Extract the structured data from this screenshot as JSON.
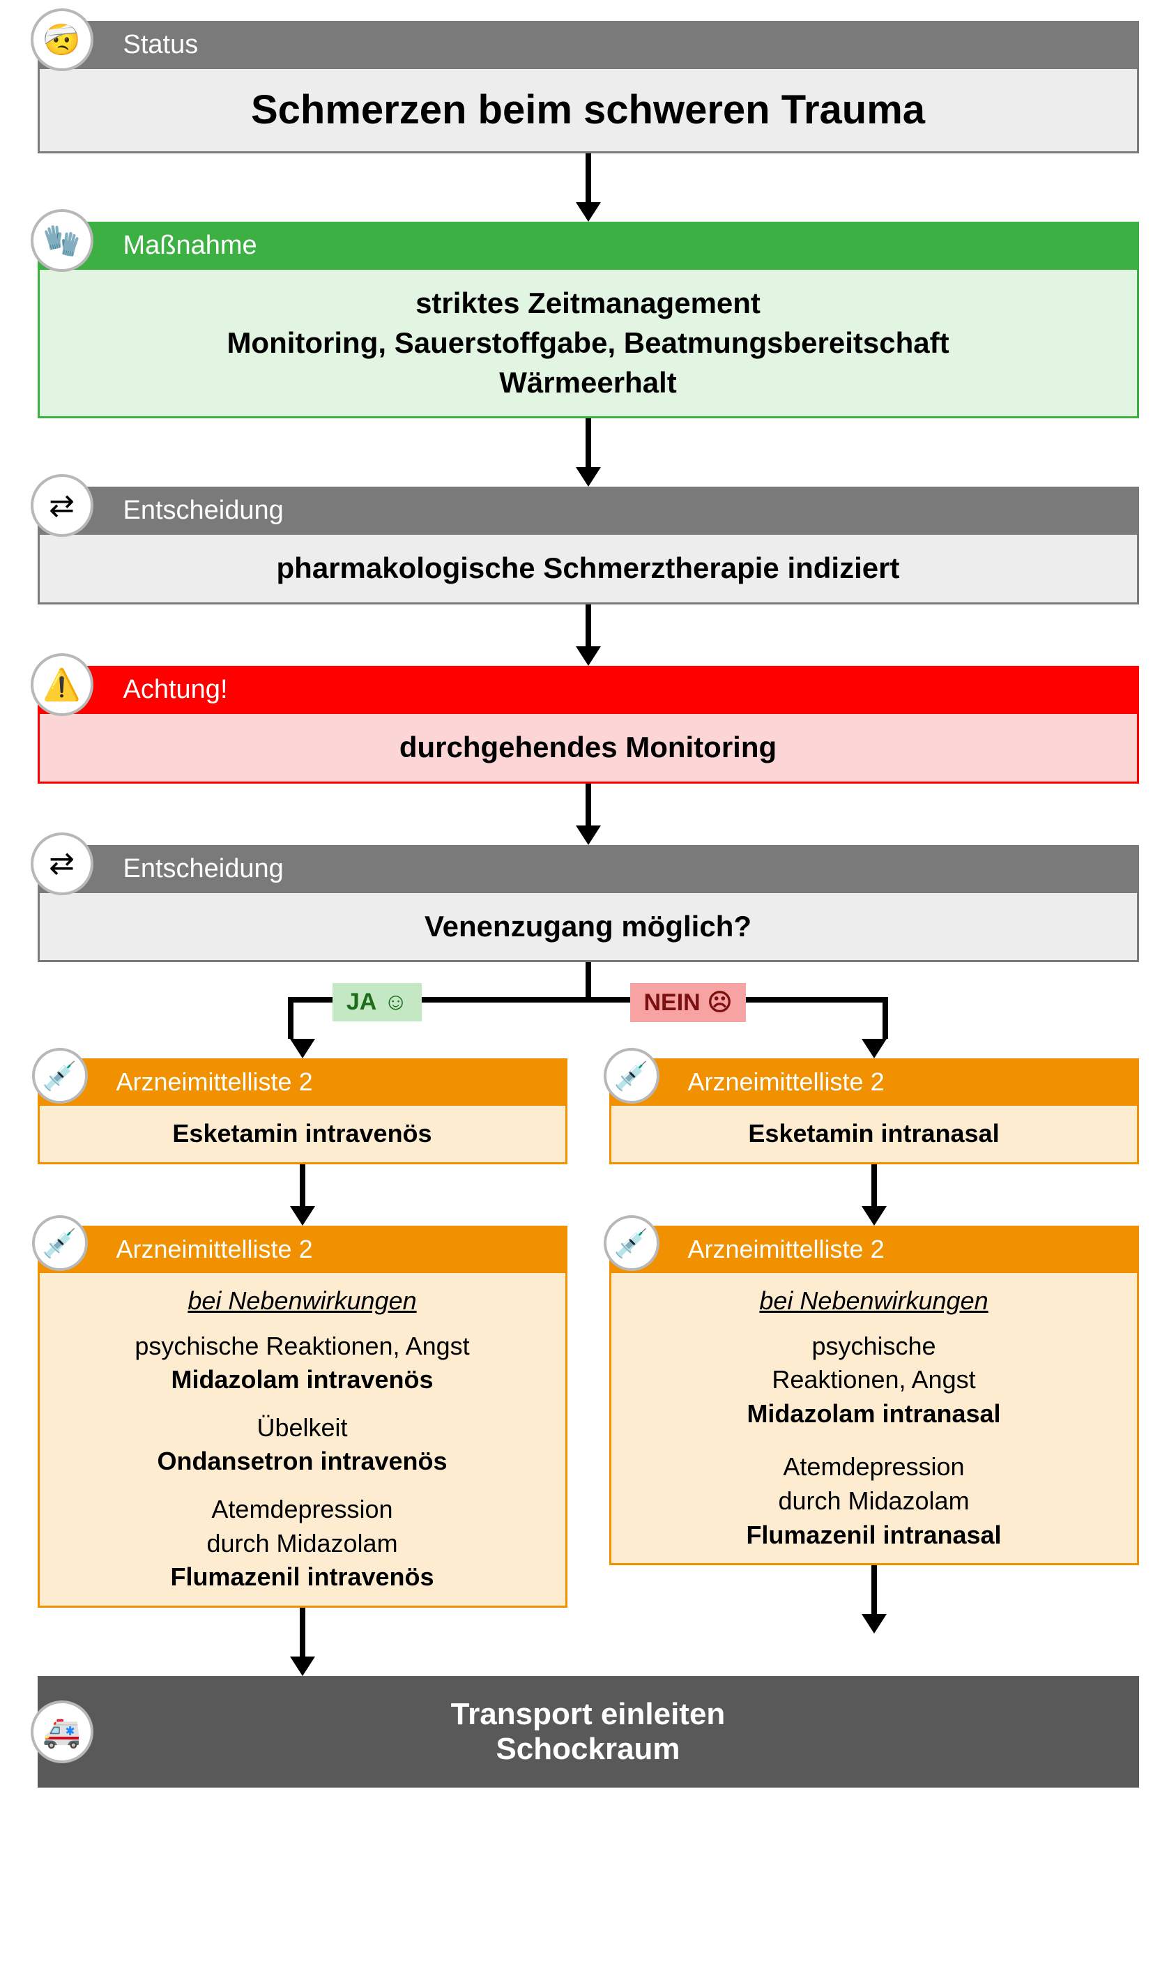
{
  "colors": {
    "gray_header": "#7a7a7a",
    "gray_body": "#ededed",
    "gray_border": "#7a7a7a",
    "green_header": "#3cb043",
    "green_body": "#e2f4e2",
    "green_border": "#3cb043",
    "red_header": "#ff0000",
    "red_body": "#fcd6d6",
    "red_border": "#ff0000",
    "orange_header": "#f29100",
    "orange_body": "#fdecd0",
    "orange_border": "#f29100",
    "dark_end": "#595959",
    "end_text": "#ffffff",
    "ja_bg": "#c3e8c3",
    "ja_text": "#1c6b1c",
    "nein_bg": "#f7a3a3",
    "nein_text": "#7a1010",
    "icon_border": "#b8b8b8"
  },
  "arrow_lengths": {
    "short": 70,
    "med": 60
  },
  "status": {
    "icon": "🤕",
    "header": "Status",
    "title": "Schmerzen beim schweren Trauma"
  },
  "massnahme": {
    "icon": "🧤",
    "header": "Maßnahme",
    "line1": "striktes Zeitmanagement",
    "line2": "Monitoring, Sauerstoffgabe, Beatmungsbereitschaft",
    "line3": "Wärmeerhalt"
  },
  "entscheidung1": {
    "icon": "⇄",
    "header": "Entscheidung",
    "body": "pharmakologische Schmerztherapie indiziert"
  },
  "achtung": {
    "icon": "⚠️",
    "header": "Achtung!",
    "body": "durchgehendes Monitoring"
  },
  "entscheidung2": {
    "icon": "⇄",
    "header": "Entscheidung",
    "body": "Venenzugang möglich?"
  },
  "branch": {
    "ja_label": "JA",
    "ja_emoji": "☺",
    "nein_label": "NEIN",
    "nein_emoji": "☹",
    "left_pct": 23,
    "right_pct": 77
  },
  "left": {
    "med1": {
      "icon": "💉",
      "header": "Arzneimittelliste 2",
      "body": "Esketamin intravenös"
    },
    "med2": {
      "icon": "💉",
      "header": "Arzneimittelliste 2",
      "sub": "bei Nebenwirkungen",
      "g1a": "psychische Reaktionen, Angst",
      "g1b": "Midazolam intravenös",
      "g2a": "Übelkeit",
      "g2b": "Ondansetron intravenös",
      "g3a": "Atemdepression",
      "g3b": "durch Midazolam",
      "g3c": "Flumazenil intravenös"
    }
  },
  "right": {
    "med1": {
      "icon": "💉",
      "header": "Arzneimittelliste 2",
      "body": "Esketamin intranasal"
    },
    "med2": {
      "icon": "💉",
      "header": "Arzneimittelliste 2",
      "sub": "bei Nebenwirkungen",
      "g1a": "psychische",
      "g1b": "Reaktionen, Angst",
      "g1c": "Midazolam intranasal",
      "g2a": "Atemdepression",
      "g2b": "durch Midazolam",
      "g2c": "Flumazenil intranasal"
    }
  },
  "end": {
    "icon": "🚑",
    "line1": "Transport einleiten",
    "line2": "Schockraum"
  }
}
